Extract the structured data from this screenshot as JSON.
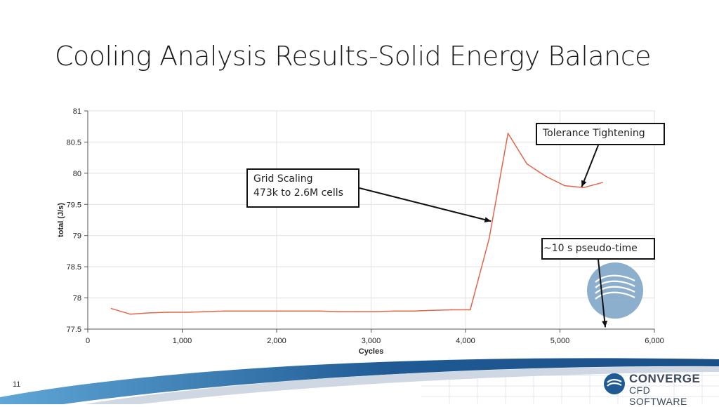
{
  "slide": {
    "title": "Cooling Analysis Results-Solid Energy Balance",
    "page_number": "11"
  },
  "brand": {
    "name": "CONVERGE",
    "tagline": "CFD SOFTWARE",
    "logo_icon": "converge-swirl-icon",
    "accent_color": "#1f5a94"
  },
  "chart_data": {
    "type": "line",
    "xlabel": "Cycles",
    "ylabel": "total (J/s)",
    "xlim": [
      0,
      6000
    ],
    "ylim": [
      77.5,
      81
    ],
    "xticks": [
      0,
      1000,
      2000,
      3000,
      4000,
      5000,
      6000
    ],
    "xtick_labels": [
      "0",
      "1,000",
      "2,000",
      "3,000",
      "4,000",
      "5,000",
      "6,000"
    ],
    "yticks": [
      77.5,
      78,
      78.5,
      79,
      79.5,
      80,
      80.5,
      81
    ],
    "ytick_labels": [
      "77.5",
      "78",
      "78.5",
      "79",
      "79.5",
      "80",
      "80.5",
      "81"
    ],
    "grid": true,
    "line_color": "#e2664a",
    "series": [
      {
        "x": [
          250,
          450,
          650,
          850,
          1050,
          1250,
          1450,
          1650,
          1850,
          2050,
          2250,
          2450,
          2650,
          2850,
          3050,
          3250,
          3450,
          3650,
          3850,
          4050,
          4250,
          4450,
          4650,
          4850,
          5050,
          5250,
          5450
        ],
        "y": [
          77.83,
          77.74,
          77.76,
          77.77,
          77.77,
          77.78,
          77.79,
          77.79,
          77.79,
          77.79,
          77.79,
          77.79,
          77.78,
          77.78,
          77.78,
          77.79,
          77.79,
          77.8,
          77.81,
          77.81,
          78.95,
          80.64,
          80.15,
          79.95,
          79.8,
          79.77,
          79.85
        ]
      }
    ],
    "annotations": [
      {
        "lines": [
          "Grid Scaling",
          "473k to 2.6M cells"
        ],
        "target": [
          4270,
          79.23
        ]
      },
      {
        "lines": [
          "Tolerance Tightening"
        ],
        "target": [
          5230,
          79.78
        ]
      },
      {
        "lines": [
          "~10 s pseudo-time"
        ],
        "target": [
          5480,
          77.53
        ]
      }
    ]
  }
}
